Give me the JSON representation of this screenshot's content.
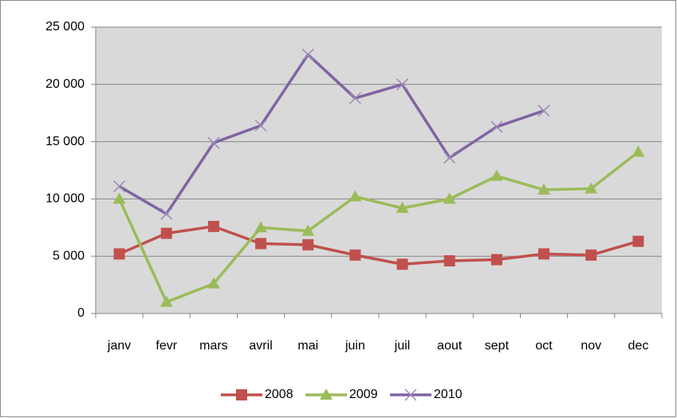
{
  "chart_data": {
    "type": "line",
    "categories": [
      "janv",
      "fevr",
      "mars",
      "avril",
      "mai",
      "juin",
      "juil",
      "aout",
      "sept",
      "oct",
      "nov",
      "dec"
    ],
    "series": [
      {
        "name": "2008",
        "color": "#c0504d",
        "marker": "square",
        "values": [
          5200,
          7000,
          7600,
          6100,
          6000,
          5100,
          4300,
          4600,
          4700,
          5200,
          5100,
          6300
        ]
      },
      {
        "name": "2009",
        "color": "#9bbb59",
        "marker": "triangle",
        "values": [
          10000,
          1000,
          2600,
          7500,
          7200,
          10200,
          9200,
          10000,
          12000,
          10800,
          10900,
          14100
        ]
      },
      {
        "name": "2010",
        "color": "#8064a2",
        "marker": "x",
        "values": [
          11100,
          8700,
          14900,
          16400,
          22600,
          18800,
          20000,
          13600,
          16300,
          17700,
          null,
          null
        ]
      }
    ],
    "ylim": [
      0,
      25000
    ],
    "yticks": [
      0,
      {
        "value": 5000,
        "label": "5 000"
      },
      {
        "value": 10000,
        "label": "10 000"
      },
      {
        "value": 15000,
        "label": "15 000"
      },
      {
        "value": 20000,
        "label": "20 000"
      },
      {
        "value": 25000,
        "label": "25 000"
      }
    ],
    "grid": true,
    "legend": "bottom",
    "plot_background": "#d9d9d9"
  }
}
